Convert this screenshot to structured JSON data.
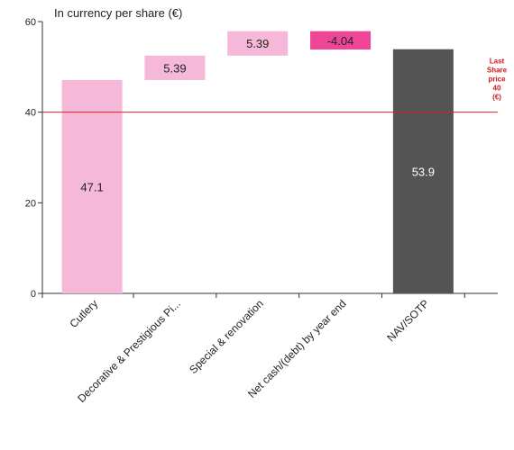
{
  "chart_data": {
    "type": "waterfall",
    "unit_label": "In currency per share (€)",
    "ylim": [
      0,
      60
    ],
    "y_ticks": [
      0,
      20,
      40,
      60
    ],
    "bars": [
      {
        "category": "Cutlery",
        "base": 0,
        "value": 47.1,
        "label": "47.1",
        "color": "#f6b8d8",
        "label_color": "#222222"
      },
      {
        "category": "Decorative & Prestigious Pi...",
        "base": 47.1,
        "value": 5.39,
        "label": "5.39",
        "color": "#f6b8d8",
        "label_color": "#222222"
      },
      {
        "category": "Special & renovation",
        "base": 52.49,
        "value": 5.39,
        "label": "5.39",
        "color": "#f6b8d8",
        "label_color": "#222222"
      },
      {
        "category": "Net cash/(debt) by year end",
        "base": 57.88,
        "value": -4.04,
        "label": "-4.04",
        "color": "#ee4597",
        "label_color": "#222222"
      },
      {
        "category": "NAV/SOTP",
        "base": 0,
        "value": 53.9,
        "label": "53.9",
        "color": "#545454",
        "label_color": "#ffffff"
      }
    ],
    "reference_line": {
      "value": 40,
      "color": "#e02020",
      "label_lines": [
        "Last",
        "Share",
        "price",
        "40",
        "(€)"
      ]
    },
    "grid": false
  }
}
